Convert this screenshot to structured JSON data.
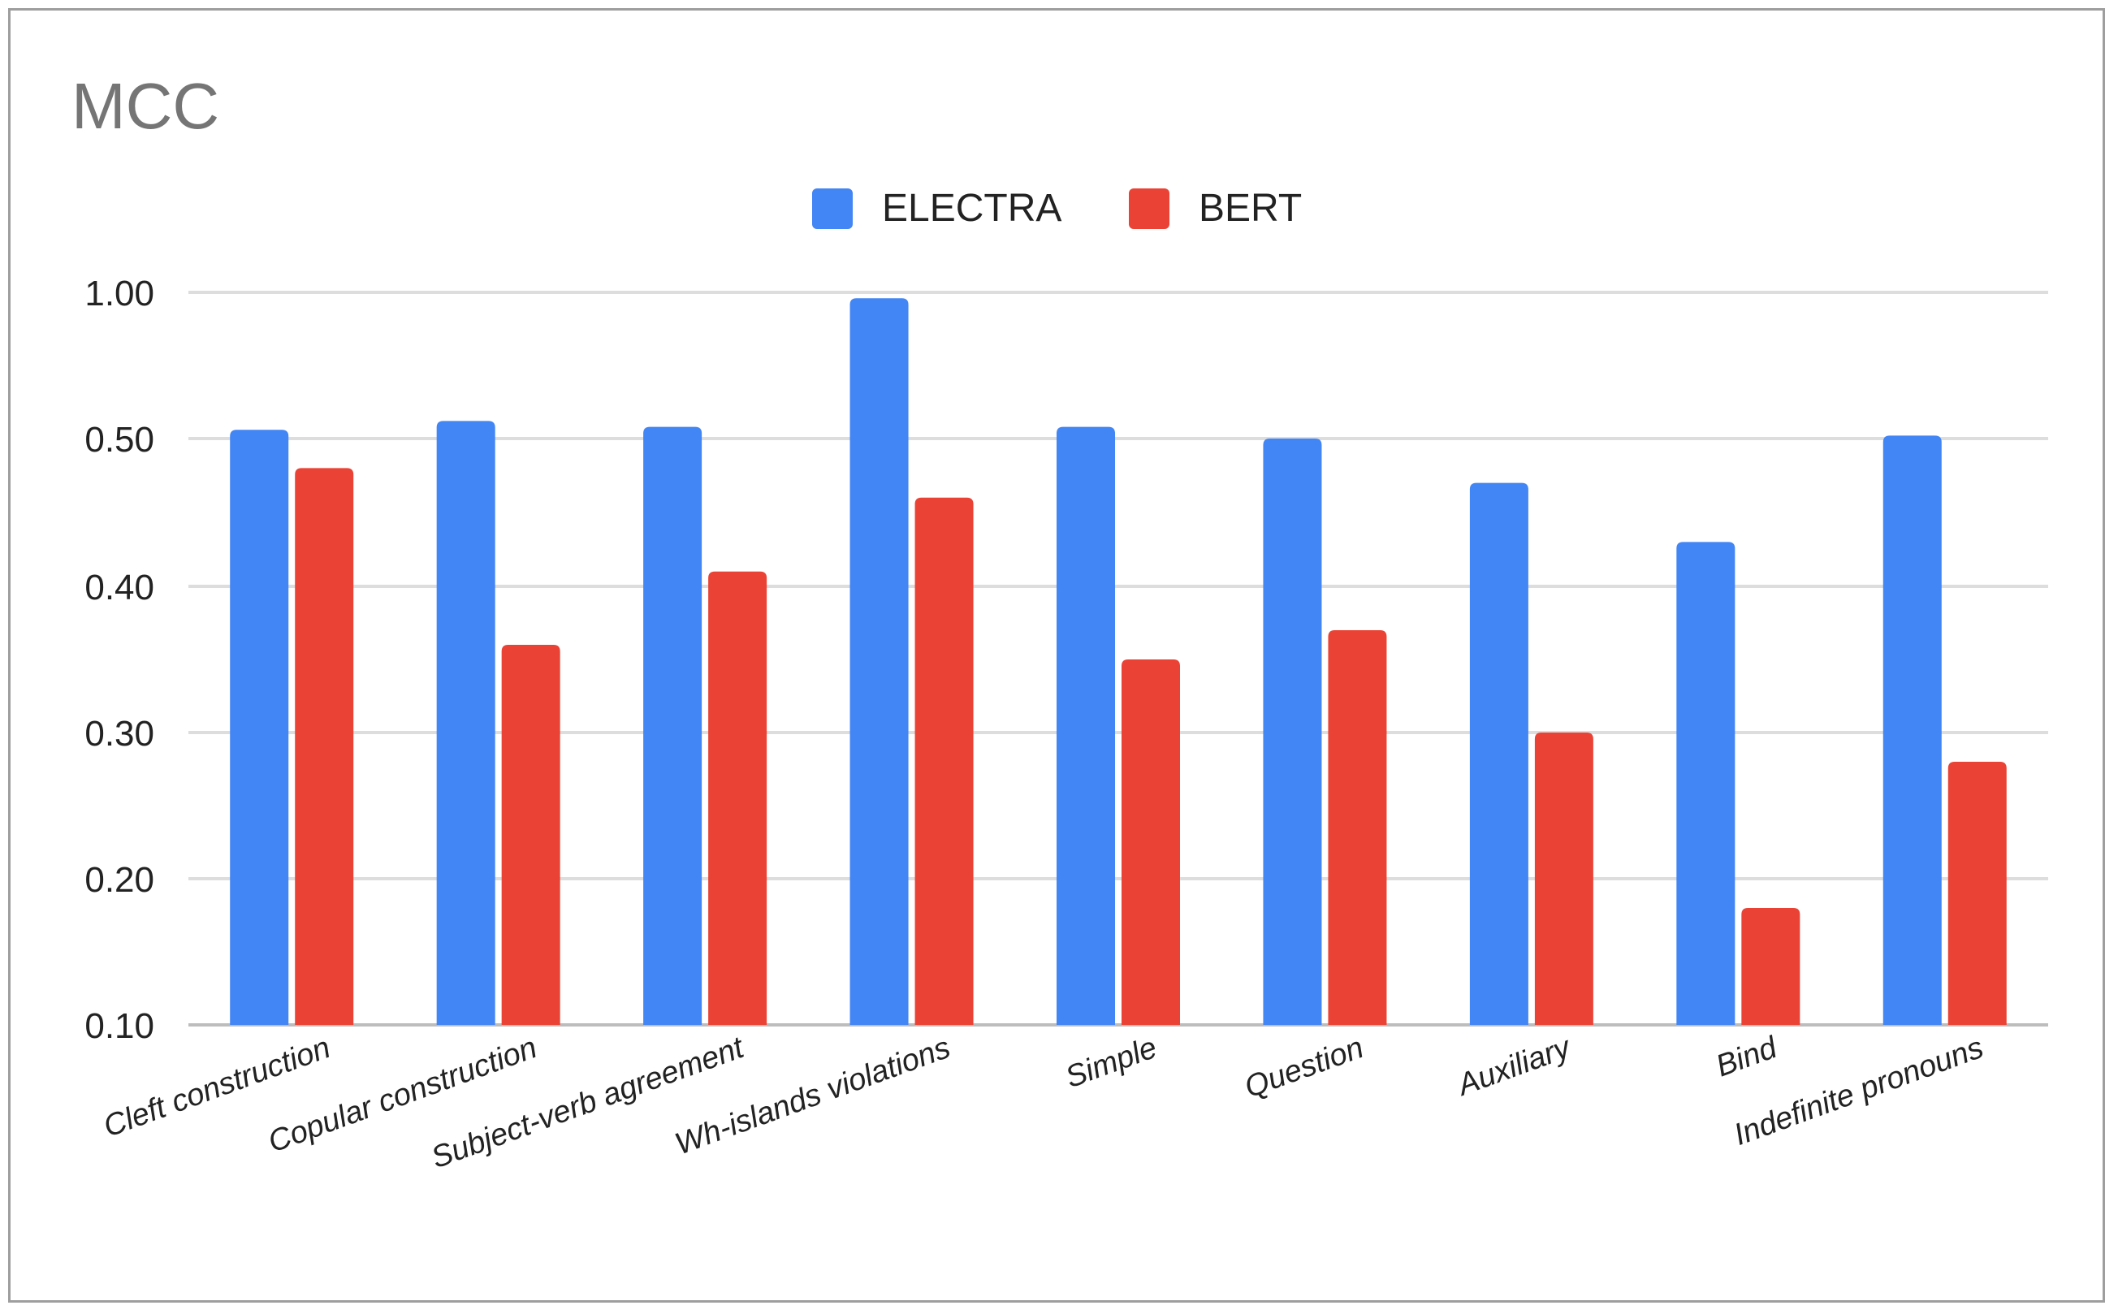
{
  "chart_data": {
    "type": "bar",
    "title": "MCC",
    "xlabel": "",
    "ylabel": "",
    "legend_position": "top-center",
    "grid": true,
    "y_ticks": [
      "0.10",
      "0.20",
      "0.30",
      "0.40",
      "0.50",
      "1.00"
    ],
    "categories": [
      "Cleft construction",
      "Copular construction",
      "Subject-verb agreement",
      "Wh-islands violations",
      "Simple",
      "Question",
      "Auxiliary",
      "Bind",
      "Indefinite pronouns"
    ],
    "series": [
      {
        "name": "ELECTRA",
        "color": "#4285f4",
        "values": [
          0.53,
          0.56,
          0.54,
          0.98,
          0.54,
          0.5,
          0.47,
          0.43,
          0.51
        ]
      },
      {
        "name": "BERT",
        "color": "#ea4335",
        "values": [
          0.48,
          0.36,
          0.41,
          0.46,
          0.35,
          0.37,
          0.3,
          0.18,
          0.28
        ]
      }
    ]
  }
}
